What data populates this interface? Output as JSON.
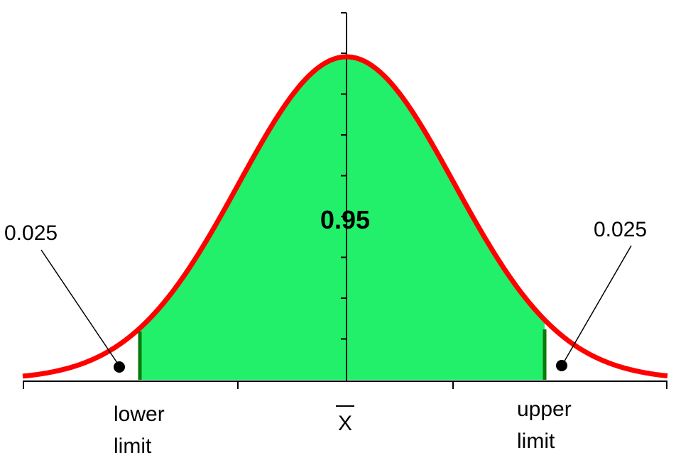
{
  "chart_data": {
    "type": "area",
    "curve": "normal density",
    "shaded_region": {
      "from": "lower limit",
      "to": "upper limit",
      "color": "#22f06a"
    },
    "curve_color": "#ff0000",
    "bound_line_color": "#0a7a0a"
  },
  "center_area": "0.95",
  "left_tail": {
    "area": "0.025",
    "bound_label_line1": "lower",
    "bound_label_line2": "limit"
  },
  "right_tail": {
    "area": "0.025",
    "bound_label_line1": "upper",
    "bound_label_line2": "limit"
  },
  "mean_label": "X"
}
